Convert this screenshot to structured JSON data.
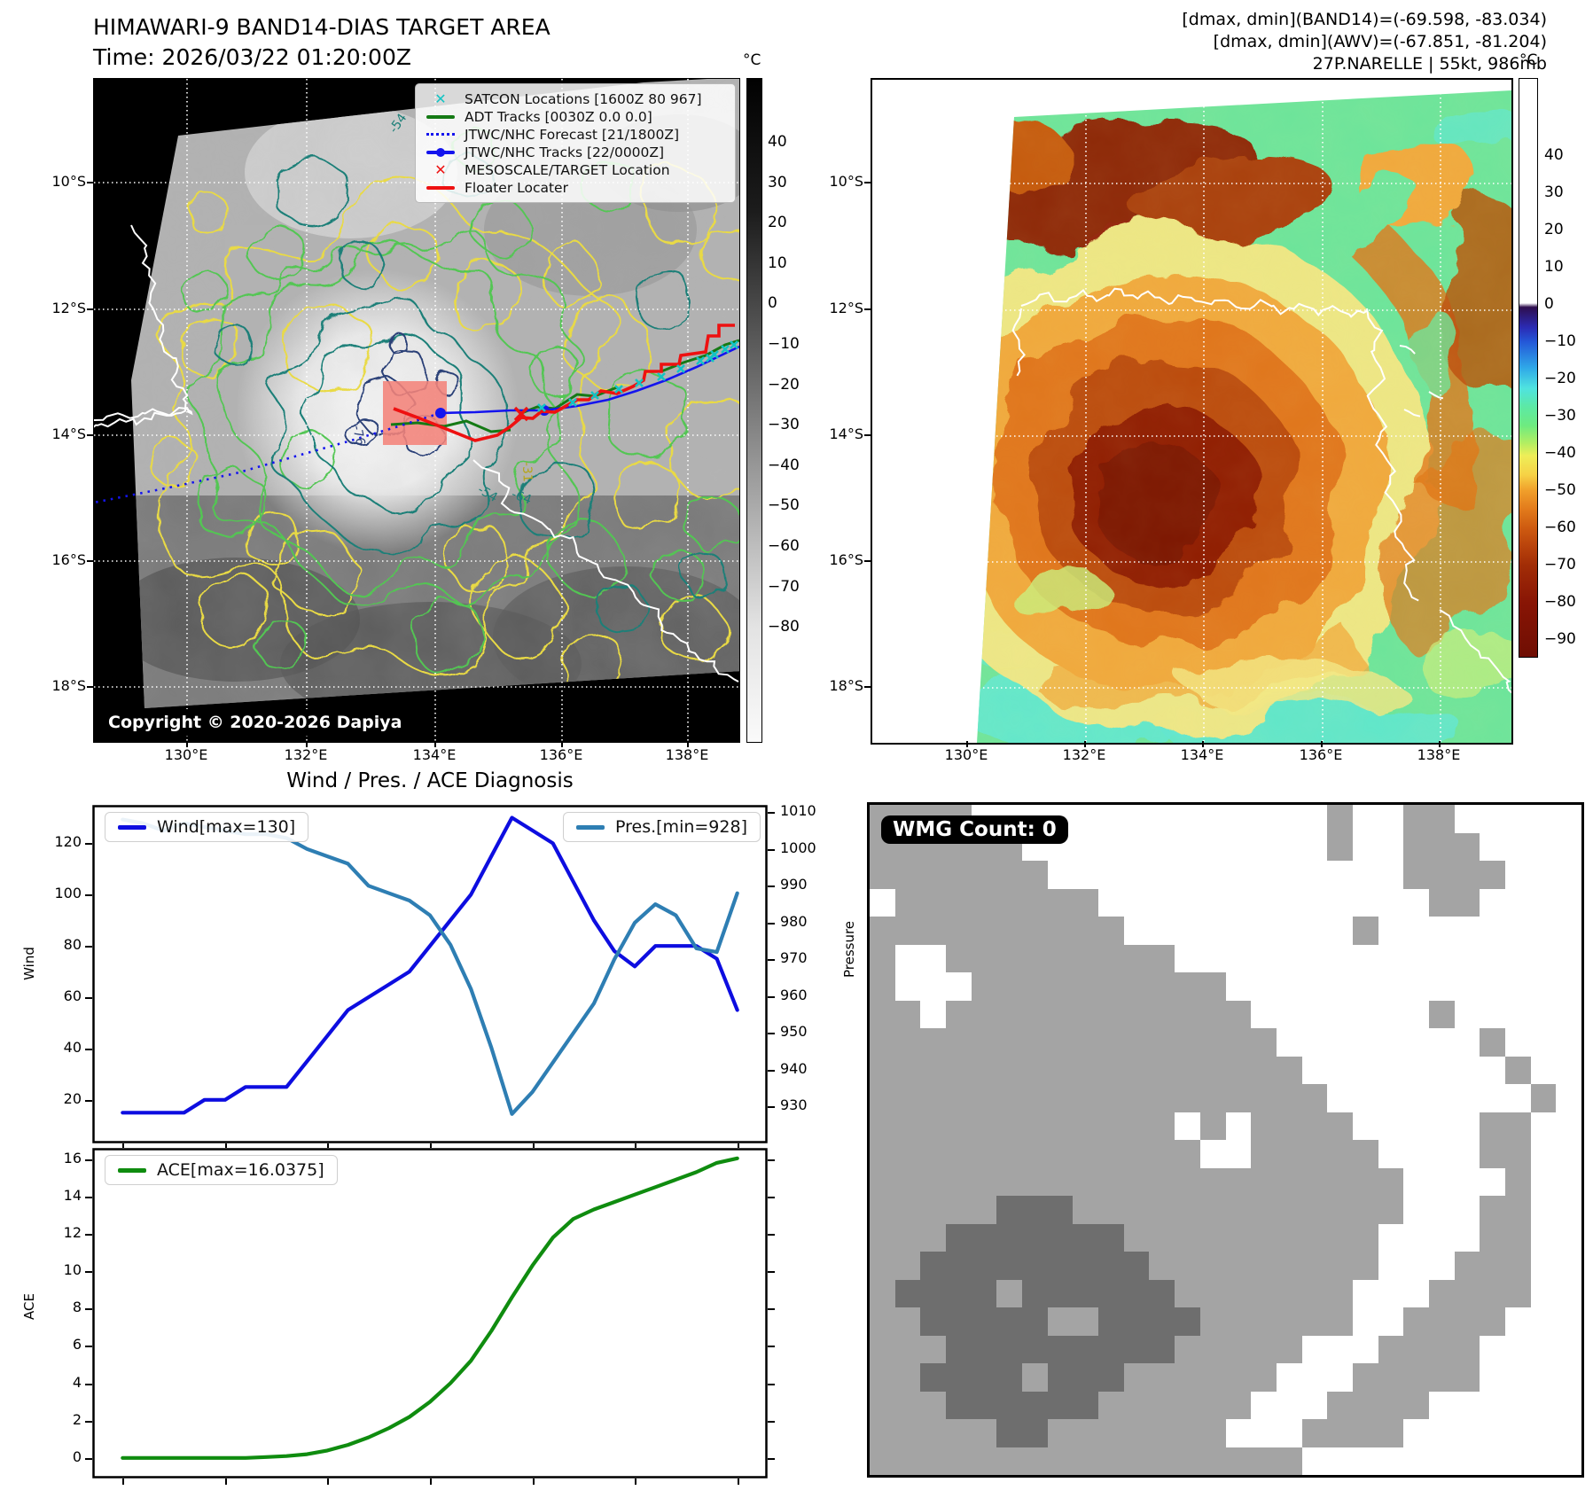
{
  "panel_band14": {
    "title": "HIMAWARI-9 BAND14-DIAS TARGET AREA",
    "time_label": "Time: 2026/03/22 01:20:00Z",
    "copyright": "Copyright © 2020-2026 Dapiya",
    "legend": [
      {
        "label": "SATCON Locations [1600Z 80 967]",
        "marker": "x-marker",
        "color": "#12c4c4"
      },
      {
        "label": "ADT Tracks [0030Z 0.0 0.0]",
        "marker": "solid-line",
        "color": "#157a15"
      },
      {
        "label": "JTWC/NHC Forecast [21/1800Z]",
        "marker": "dotted-line",
        "color": "#1414ee"
      },
      {
        "label": "JTWC/NHC Tracks [22/0000Z]",
        "marker": "line-with-dot",
        "color": "#1414ee"
      },
      {
        "label": "MESOSCALE/TARGET Location",
        "marker": "x-marker",
        "color": "#ee1111"
      },
      {
        "label": "Floater Locater",
        "marker": "solid-line",
        "color": "#ee1111"
      }
    ],
    "x_tick_labels": [
      "130°E",
      "132°E",
      "134°E",
      "136°E",
      "138°E"
    ],
    "y_tick_labels": [
      "10°S",
      "12°S",
      "14°S",
      "16°S",
      "18°S"
    ],
    "contour_labels": [
      "-54",
      "-76",
      "-64",
      "-54",
      "-31"
    ],
    "colorbar": {
      "unit": "°C",
      "ticks": [
        "40",
        "30",
        "20",
        "10",
        "0",
        "−10",
        "−20",
        "−30",
        "−40",
        "−50",
        "−60",
        "−70",
        "−80"
      ],
      "gradient_stops": [
        [
          0,
          "#020202"
        ],
        [
          0.2,
          "#1c1c1c"
        ],
        [
          0.34,
          "#484848"
        ],
        [
          0.46,
          "#6e6e6e"
        ],
        [
          0.584,
          "#979797"
        ],
        [
          0.71,
          "#bfbfbf"
        ],
        [
          0.827,
          "#e3e3e3"
        ],
        [
          1,
          "#fafafa"
        ]
      ]
    },
    "map_colors": {
      "background": "#000000",
      "swath_gray": "#b2b2b2",
      "cloud_dark": "#5c5c5c",
      "cdo_white": "#f4f4f4",
      "contour_yellow": "#e9da45",
      "contour_green": "#53c653",
      "contour_teal": "#1b7f78",
      "contour_navy": "#2b3f77",
      "coastline": "#ffffff",
      "target_square": "#f4837a",
      "track_red": "#ee1111",
      "track_blue": "#1414ee",
      "track_green": "#157a15",
      "satcon_cyan": "#12c4c4"
    }
  },
  "panel_awv": {
    "header_line1": "[dmax, dmin](BAND14)=(-69.598, -83.034)",
    "header_line2": "[dmax, dmin](AWV)=(-67.851, -81.204)",
    "header_line3": "27P.NARELLE | 55kt, 986mb",
    "x_tick_labels": [
      "130°E",
      "132°E",
      "134°E",
      "136°E",
      "138°E"
    ],
    "y_tick_labels": [
      "10°S",
      "12°S",
      "14°S",
      "16°S",
      "18°S"
    ],
    "colorbar": {
      "unit": "°C",
      "ticks": [
        "40",
        "30",
        "20",
        "10",
        "0",
        "−10",
        "−20",
        "−30",
        "−40",
        "−50",
        "−60",
        "−70",
        "−80",
        "−90"
      ],
      "gradient_stops": [
        [
          0,
          "#ffffff"
        ],
        [
          0.388,
          "#ffffff"
        ],
        [
          0.395,
          "#2e0e4e"
        ],
        [
          0.43,
          "#2b2bb4"
        ],
        [
          0.455,
          "#2458d8"
        ],
        [
          0.5,
          "#2fa8e8"
        ],
        [
          0.535,
          "#4fe3e0"
        ],
        [
          0.567,
          "#5ce9a5"
        ],
        [
          0.6,
          "#6eeb80"
        ],
        [
          0.63,
          "#b2ee62"
        ],
        [
          0.652,
          "#eeee58"
        ],
        [
          0.685,
          "#f6d246"
        ],
        [
          0.713,
          "#f09e2a"
        ],
        [
          0.745,
          "#e27a1b"
        ],
        [
          0.778,
          "#cd5a10"
        ],
        [
          0.81,
          "#b8420b"
        ],
        [
          0.842,
          "#a12d06"
        ],
        [
          0.906,
          "#881505"
        ],
        [
          1,
          "#6f0e03"
        ]
      ]
    },
    "map_colors": {
      "ocean_green": "#6ce59b",
      "shallow_cyan": "#5fe8d2",
      "cloud_yellow": "#f2e784",
      "cloud_orange": "#f0a93c",
      "cloud_deep_orange": "#e0761a",
      "cloud_brown": "#bb4c08",
      "cloud_dark_red": "#8f1a06",
      "coastline": "#ffffff"
    }
  },
  "diagnosis": {
    "title": "Wind / Pres. / ACE Diagnosis",
    "wind_axis_label": "Wind",
    "pressure_axis_label": "Pressure",
    "ace_axis_label": "ACE",
    "wind_legend": "Wind[max=130]",
    "pressure_legend": "Pres.[min=928]",
    "ace_legend": "ACE[max=16.0375]"
  },
  "chart_data": [
    {
      "type": "line",
      "title": "Wind / Pres. / ACE Diagnosis",
      "x_values": [
        0,
        1,
        2,
        3,
        4,
        5,
        6,
        7,
        8,
        9,
        10,
        11,
        12,
        13,
        14,
        15,
        16,
        17,
        18,
        19,
        20,
        21,
        22,
        23,
        24,
        25,
        26,
        27,
        28,
        29,
        30
      ],
      "series": [
        {
          "name": "Wind[max=130]",
          "axis": "left",
          "color": "#0d0de0",
          "values": [
            15,
            15,
            15,
            15,
            20,
            20,
            25,
            25,
            25,
            35,
            45,
            55,
            60,
            65,
            70,
            80,
            90,
            100,
            115,
            130,
            125,
            120,
            105,
            90,
            78,
            72,
            80,
            80,
            80,
            75,
            55
          ]
        },
        {
          "name": "Pres.[min=928]",
          "axis": "right",
          "color": "#2e7eb3",
          "values": [
            1008,
            1007,
            1005,
            1007,
            1006,
            1005,
            1004,
            1004,
            1003,
            1000,
            998,
            996,
            990,
            988,
            986,
            982,
            974,
            962,
            946,
            928,
            934,
            942,
            950,
            958,
            970,
            980,
            985,
            982,
            973,
            972,
            988
          ]
        }
      ],
      "left_axis": {
        "label": "Wind",
        "lim": [
          3,
          135
        ],
        "ticks": [
          20,
          40,
          60,
          80,
          100,
          120
        ]
      },
      "right_axis": {
        "label": "Pressure",
        "lim": [
          920,
          1012
        ],
        "ticks": [
          930,
          940,
          950,
          960,
          970,
          980,
          990,
          1000,
          1010
        ]
      },
      "grid": false,
      "legend_position": "upper-left and upper-right"
    },
    {
      "type": "line",
      "x_values": [
        0,
        1,
        2,
        3,
        4,
        5,
        6,
        7,
        8,
        9,
        10,
        11,
        12,
        13,
        14,
        15,
        16,
        17,
        18,
        19,
        20,
        21,
        22,
        23,
        24,
        25,
        26,
        27,
        28,
        29,
        30
      ],
      "series": [
        {
          "name": "ACE[max=16.0375]",
          "axis": "left",
          "color": "#0f8c0f",
          "values": [
            0,
            0,
            0,
            0,
            0,
            0,
            0,
            0.05,
            0.1,
            0.2,
            0.4,
            0.7,
            1.1,
            1.6,
            2.2,
            3.0,
            4.0,
            5.2,
            6.8,
            8.6,
            10.3,
            11.8,
            12.8,
            13.3,
            13.7,
            14.1,
            14.5,
            14.9,
            15.3,
            15.8,
            16.04
          ]
        }
      ],
      "left_axis": {
        "label": "ACE",
        "lim": [
          -1.1,
          16.6
        ],
        "ticks": [
          0,
          2,
          4,
          6,
          8,
          10,
          12,
          14,
          16
        ]
      },
      "grid": false,
      "legend_position": "upper-left"
    }
  ],
  "wmg": {
    "count_label": "WMG Count: 0",
    "cell_colors": {
      ".": "#ffffff",
      "a": "#a4a4a4",
      "b": "#6e6e6e"
    },
    "grid_rows": [
      "aaaa..............a..aa.....",
      "aaaaaa............a..aaa....",
      "aaaaaaa..............aaaa...",
      ".aaaaaaaa.............aa....",
      "aaaaaaaaaa.........a........",
      "a..aaaaaaaaa................",
      "a...aaaaaaaaaa..............",
      "aa.aaaaaaaaaaaa.......a.....",
      "aaaaaaaaaaaaaaaa........a...",
      "aaaaaaaaaaaaaaaaa........a..",
      "aaaaaaaaaaaaaaaaaa........a.",
      "aaaaaaaaaaaa.a.aaaa.....aa..",
      "aaaaaaaaaaaaa..aaaaa....aa..",
      "aaaaaaaaaaaaaaaaaaaaa....a..",
      "aaaaabbbaaaaaaaaaaaaa...aa..",
      "aaabbbbbbbaaaaaaaaaa....aa..",
      "aabbbbbbbbbaaaaaaaaa...aaa..",
      "abbbbabbbbbbaaaaaaa...aaaa..",
      "aabbbbbaabbbbaaaaaa..aaaa...",
      "aaabbbbbbbbbaaaaa...aaaa....",
      "aabbbbabbbaaaaaa...aaaaa....",
      "aaabbbbbbaaaaaa...aaaa......",
      "aaaaabbaaaaaaa...aaaa.......",
      "aaaaaaaaaaaaaaaaa..........."
    ]
  }
}
